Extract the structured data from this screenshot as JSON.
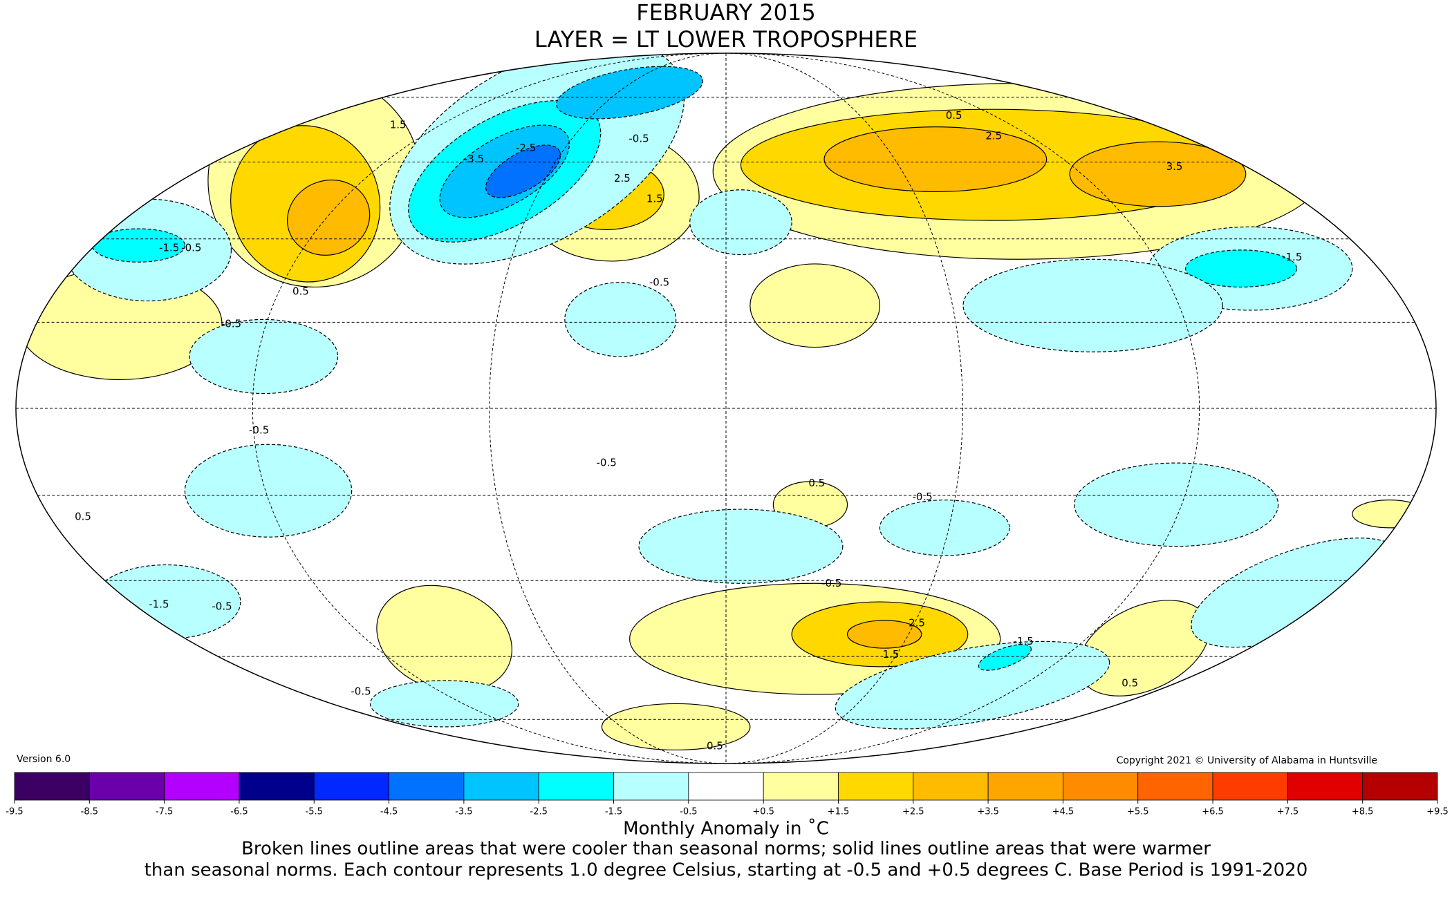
{
  "header": {
    "title": "FEBRUARY 2015",
    "subtitle": "LAYER = LT LOWER TROPOSPHERE"
  },
  "version": "Version 6.0",
  "copyright": "Copyright 2021 © University of Alabama in Huntsville",
  "map": {
    "contour_labels": [
      "1.5",
      "0.5",
      "-1.5",
      "-0.5",
      "2.5",
      "-3.5",
      "-2.5",
      "1.5",
      "-0.5",
      "0.5",
      "2.5",
      "3.5",
      "-1.5",
      "-0.5",
      "-0.5",
      "-0.5",
      "-0.5",
      "0.5",
      "-0.5",
      "-0.5",
      "2.5",
      "1.5",
      "-1.5",
      "-0.5",
      "0.5",
      "0.5",
      "0.5",
      "-1.5",
      "-0.5"
    ]
  },
  "colorbar": {
    "ticks": [
      -9.5,
      -8.5,
      -7.5,
      -6.5,
      -5.5,
      -4.5,
      -3.5,
      -2.5,
      -1.5,
      -0.5,
      {
        "value": 0.5,
        "label": "+0.5"
      },
      {
        "value": 1.5,
        "label": "+1.5"
      },
      {
        "value": 2.5,
        "label": "+2.5"
      },
      {
        "value": 3.5,
        "label": "+3.5"
      },
      {
        "value": 4.5,
        "label": "+4.5"
      },
      {
        "value": 5.5,
        "label": "+5.5"
      },
      {
        "value": 6.5,
        "label": "+6.5"
      },
      {
        "value": 7.5,
        "label": "+7.5"
      },
      {
        "value": 8.5,
        "label": "+8.5"
      },
      {
        "value": 9.5,
        "label": "+9.5"
      }
    ],
    "colors": [
      "#3c0064",
      "#6a00aa",
      "#b400ff",
      "#00008c",
      "#0028ff",
      "#0072ff",
      "#00c4ff",
      "#00ffff",
      "#b8ffff",
      "#ffffff",
      "#ffffa0",
      "#ffd800",
      "#ffbb00",
      "#ffa500",
      "#ff8c00",
      "#ff6400",
      "#ff3c00",
      "#e00000",
      "#b40000"
    ],
    "label": "Monthly Anomaly in ˚C"
  },
  "caption": [
    "Broken lines outline areas that were cooler than seasonal norms; solid lines outline areas that were warmer",
    "than seasonal norms. Each contour represents 1.0 degree Celsius, starting at -0.5 and +0.5 degrees C. Base Period is 1991-2020"
  ]
}
